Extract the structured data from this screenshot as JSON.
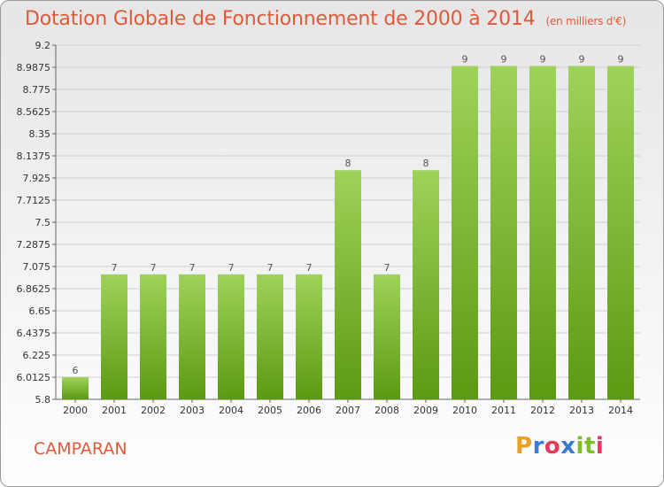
{
  "header": {
    "title": "Dotation Globale de Fonctionnement de 2000 à 2014",
    "subtitle": "(en milliers d'€)"
  },
  "footer": {
    "commune": "CAMPARAN",
    "logo": {
      "letters": [
        "P",
        "r",
        "o",
        "x",
        "i",
        "t",
        "i"
      ],
      "colors": [
        "#f0a020",
        "#3a7bd5",
        "#e23a5b",
        "#3a7bd5",
        "#7cbf2a",
        "#7cbf2a",
        "#e23a5b"
      ]
    }
  },
  "colors": {
    "bar_top": "#9fd25a",
    "bar_bottom": "#5c9a12",
    "title": "#e05a3a"
  },
  "chart_data": {
    "type": "bar",
    "title": "Dotation Globale de Fonctionnement de 2000 à 2014",
    "subtitle": "(en milliers d'€)",
    "categories": [
      "2000",
      "2001",
      "2002",
      "2003",
      "2004",
      "2005",
      "2006",
      "2007",
      "2008",
      "2009",
      "2010",
      "2011",
      "2012",
      "2013",
      "2014"
    ],
    "values": [
      6,
      7,
      7,
      7,
      7,
      7,
      7,
      8,
      7,
      8,
      9,
      9,
      9,
      9,
      9
    ],
    "data_labels": [
      "6",
      "7",
      "7",
      "7",
      "7",
      "7",
      "7",
      "8",
      "7",
      "8",
      "9",
      "9",
      "9",
      "9",
      "9"
    ],
    "bar_heights_data_units": [
      6.0125,
      7.0,
      7.0,
      7.0,
      7.0,
      7.0,
      7.0,
      8.0,
      7.0,
      8.0,
      9.0,
      9.0,
      9.0,
      9.0,
      9.0
    ],
    "ylim": [
      5.8,
      9.2
    ],
    "yticks": [
      "5.8",
      "6.0125",
      "6.225",
      "6.4375",
      "6.65",
      "6.8625",
      "7.075",
      "7.2875",
      "7.5",
      "7.7125",
      "7.925",
      "8.1375",
      "8.35",
      "8.5625",
      "8.775",
      "8.9875",
      "9.2"
    ],
    "grid": true,
    "xlabel": "",
    "ylabel": ""
  }
}
